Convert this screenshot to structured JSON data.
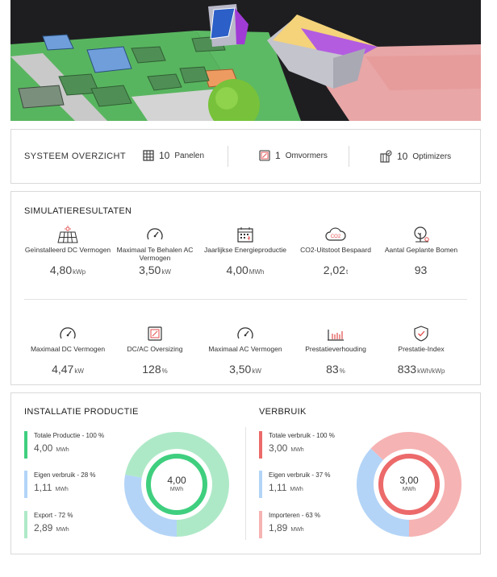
{
  "overview": {
    "title": "SYSTEEM OVERZICHT",
    "panels": {
      "count": "10",
      "label": "Panelen"
    },
    "inverters": {
      "count": "1",
      "label": "Omvormers"
    },
    "optimizers": {
      "count": "10",
      "label": "Optimizers"
    }
  },
  "simulation": {
    "title": "SIMULATIERESULTATEN",
    "row1": [
      {
        "label": "Geïnstalleerd DC Vermogen",
        "value": "4,80",
        "unit": "kWp",
        "icon": "solar-panel-icon"
      },
      {
        "label": "Maximaal Te Behalen AC Vermogen",
        "value": "3,50",
        "unit": "kW",
        "icon": "gauge-icon"
      },
      {
        "label": "Jaarlijkse Energieproductie",
        "value": "4,00",
        "unit": "MWh",
        "icon": "calendar-icon"
      },
      {
        "label": "CO2-Uitstoot Bespaard",
        "value": "2,02",
        "unit": "t",
        "icon": "co2-cloud-icon"
      },
      {
        "label": "Aantal Geplante Bomen",
        "value": "93",
        "unit": "",
        "icon": "tree-icon"
      }
    ],
    "row2": [
      {
        "label": "Maximaal DC Vermogen",
        "value": "4,47",
        "unit": "kW",
        "icon": "gauge-icon"
      },
      {
        "label": "DC/AC Oversizing",
        "value": "128",
        "unit": "%",
        "icon": "percent-box-icon"
      },
      {
        "label": "Maximaal AC Vermogen",
        "value": "3,50",
        "unit": "kW",
        "icon": "gauge-icon"
      },
      {
        "label": "Prestatieverhouding",
        "value": "83",
        "unit": "%",
        "icon": "bar-chart-icon"
      },
      {
        "label": "Prestatie-Index",
        "value": "833",
        "unit": "kWh/kWp",
        "icon": "shield-check-icon"
      }
    ]
  },
  "production": {
    "title": "INSTALLATIE PRODUCTIE",
    "items": [
      {
        "label": "Totale Productie - 100 %",
        "value": "4,00",
        "unit": "MWh",
        "color": "#3fcf7f"
      },
      {
        "label": "Eigen verbruik - 28 %",
        "value": "1,11",
        "unit": "MWh",
        "color": "#b3d4f7"
      },
      {
        "label": "Export - 72 %",
        "value": "2,89",
        "unit": "MWh",
        "color": "#aee9c7"
      }
    ],
    "center_value": "4,00",
    "center_unit": "MWh",
    "shares": {
      "self": 28,
      "export": 72
    }
  },
  "consumption": {
    "title": "VERBRUIK",
    "items": [
      {
        "label": "Totale verbruik - 100 %",
        "value": "3,00",
        "unit": "MWh",
        "color": "#ec6a6a"
      },
      {
        "label": "Eigen verbruik - 37 %",
        "value": "1,11",
        "unit": "MWh",
        "color": "#b3d4f7"
      },
      {
        "label": "Importeren - 63 %",
        "value": "1,89",
        "unit": "MWh",
        "color": "#f6b3b3"
      }
    ],
    "center_value": "3,00",
    "center_unit": "MWh",
    "shares": {
      "self": 37,
      "import": 63
    }
  }
}
